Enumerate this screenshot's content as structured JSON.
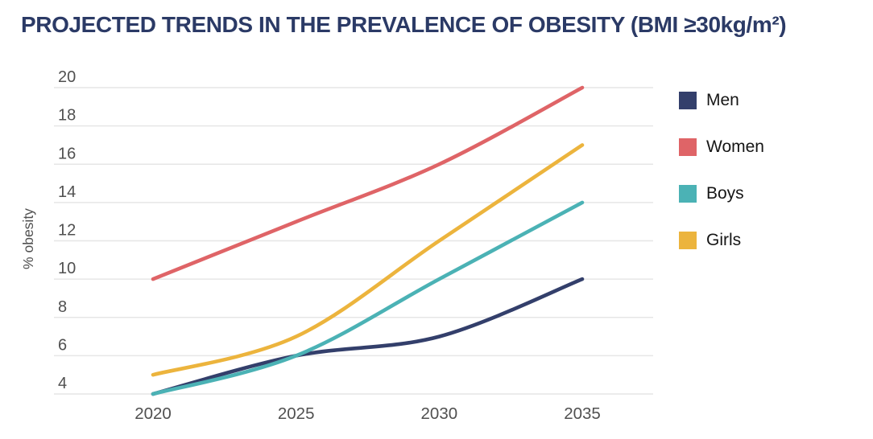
{
  "title": "PROJECTED TRENDS IN THE PREVALENCE OF OBESITY (BMI ≥30kg/m²)",
  "colors": {
    "title": "#2b3a66",
    "axis_text": "#505050",
    "grid": "#e6e6e6",
    "legend_text": "#161616",
    "background": "#ffffff"
  },
  "chart_data": {
    "type": "line",
    "title": "PROJECTED TRENDS IN THE PREVALENCE OF OBESITY (BMI ≥30kg/m²)",
    "x": [
      2020,
      2025,
      2030,
      2035
    ],
    "xtick_labels": [
      "2020",
      "2025",
      "2030",
      "2035"
    ],
    "xlabel": "",
    "ylabel": "% obesity",
    "ylim": [
      4,
      20
    ],
    "yticks": [
      4,
      6,
      8,
      10,
      12,
      14,
      16,
      18,
      20
    ],
    "grid": "horizontal",
    "legend_position": "right",
    "line_style": "smooth",
    "series": [
      {
        "name": "Men",
        "color": "#333f6b",
        "values": [
          4,
          6,
          7,
          10
        ]
      },
      {
        "name": "Women",
        "color": "#df6467",
        "values": [
          10,
          13,
          16,
          20
        ]
      },
      {
        "name": "Boys",
        "color": "#4bb2b5",
        "values": [
          4,
          6,
          10,
          14
        ]
      },
      {
        "name": "Girls",
        "color": "#ecb43d",
        "values": [
          5,
          7,
          12,
          17
        ]
      }
    ]
  }
}
